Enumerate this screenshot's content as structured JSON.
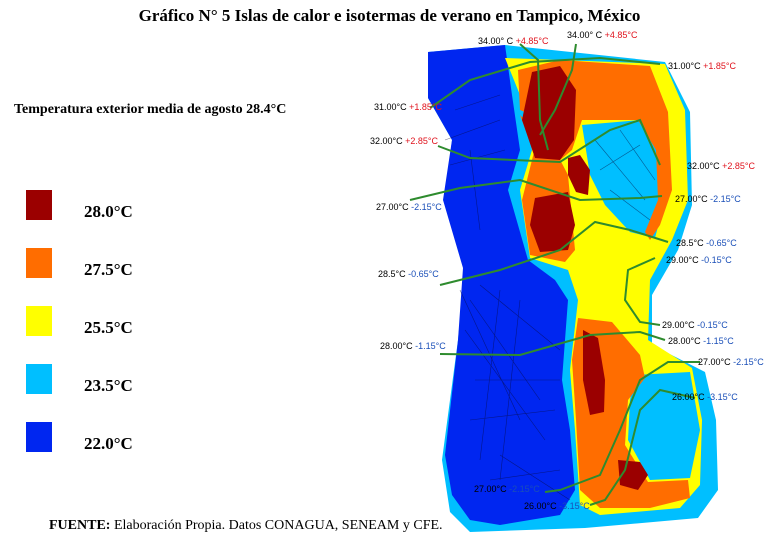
{
  "title": "Gráfico N° 5 Islas de calor e isotermas de verano en Tampico, México",
  "subtitle": "Temperatura exterior media de agosto 28.4°C",
  "legend": [
    {
      "label": "28.0°C",
      "color": "#9b0000"
    },
    {
      "label": "27.5°C",
      "color": "#ff6d00"
    },
    {
      "label": "25.5°C",
      "color": "#ffff00"
    },
    {
      "label": "23.5°C",
      "color": "#00bfff"
    },
    {
      "label": "22.0°C",
      "color": "#0026f0"
    }
  ],
  "source": {
    "prefix": "FUENTE:",
    "text": " Elaboración Propia. Datos CONAGUA, SENEAM y CFE."
  },
  "isotherms": [
    {
      "temp": "34.00° C",
      "delta": "+4.85°C",
      "sign": "pos"
    },
    {
      "temp": "34.00° C",
      "delta": "+4.85°C",
      "sign": "pos"
    },
    {
      "temp": "31.00°C",
      "delta": "+1.85°C",
      "sign": "pos"
    },
    {
      "temp": "31.00°C",
      "delta": "+1.85°C",
      "sign": "pos"
    },
    {
      "temp": "32.00°C",
      "delta": "+2.85°C",
      "sign": "pos"
    },
    {
      "temp": "32.00°C",
      "delta": "+2.85°C",
      "sign": "pos"
    },
    {
      "temp": "27.00°C",
      "delta": "-2.15°C",
      "sign": "neg"
    },
    {
      "temp": "27.00°C",
      "delta": "-2.15°C",
      "sign": "neg"
    },
    {
      "temp": "28.5°C",
      "delta": "-0.65°C",
      "sign": "neg"
    },
    {
      "temp": "28.5°C",
      "delta": "-0.65°C",
      "sign": "neg"
    },
    {
      "temp": "29.00°C",
      "delta": "-0.15°C",
      "sign": "neg"
    },
    {
      "temp": "29.00°C",
      "delta": "-0.15°C",
      "sign": "neg"
    },
    {
      "temp": "28.00°C",
      "delta": "-1.15°C",
      "sign": "neg"
    },
    {
      "temp": "28.00°C",
      "delta": "-1.15°C",
      "sign": "neg"
    },
    {
      "temp": "27.00°C",
      "delta": "-2.15°C",
      "sign": "neg"
    },
    {
      "temp": "26.00°C",
      "delta": "-3.15°C",
      "sign": "neg"
    },
    {
      "temp": "27.00°C",
      "delta": "-2.15°C",
      "sign": "neg"
    },
    {
      "temp": "26.00°C",
      "delta": "-3.15°C",
      "sign": "neg"
    }
  ],
  "delta_colors": {
    "pos": "#e0141e",
    "neg": "#1a4fb8"
  }
}
